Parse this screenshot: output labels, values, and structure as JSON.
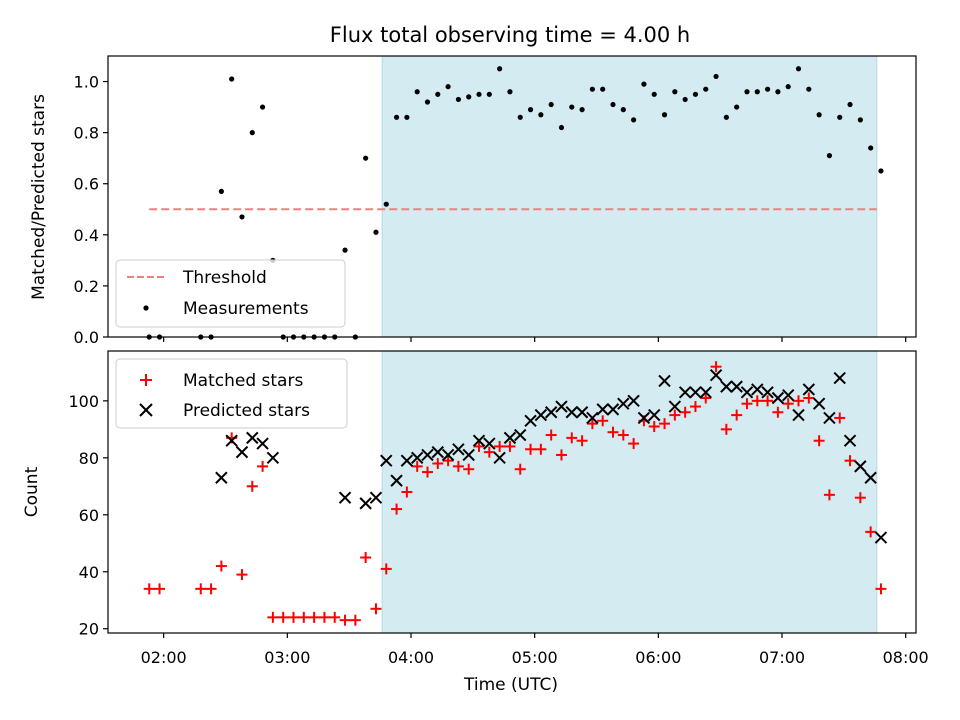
{
  "chart_data": [
    {
      "type": "scatter",
      "title": "Flux total observing time = 4.00 h",
      "xlabel": "",
      "ylabel": "Matched/Predicted stars",
      "xlim": [
        "01:33",
        "08:05"
      ],
      "ylim": [
        0,
        1.1
      ],
      "yticks": [
        "0.0",
        "0.2",
        "0.4",
        "0.6",
        "0.8",
        "1.0"
      ],
      "highlight_span": {
        "x": [
          "03:46",
          "07:46"
        ],
        "color": "#d4ebf1"
      },
      "threshold": {
        "name": "Threshold",
        "y": 0.5,
        "x": [
          "01:53",
          "07:46"
        ],
        "color": "#f08080"
      },
      "series": [
        {
          "name": "Measurements",
          "color": "#000000",
          "x": [
            "01:53",
            "01:58",
            "02:18",
            "02:23",
            "02:28",
            "02:33",
            "02:38",
            "02:43",
            "02:48",
            "02:53",
            "02:58",
            "03:03",
            "03:08",
            "03:13",
            "03:18",
            "03:23",
            "03:28",
            "03:33",
            "03:38",
            "03:43",
            "03:48",
            "03:53",
            "03:58",
            "04:03",
            "04:08",
            "04:13",
            "04:18",
            "04:23",
            "04:28",
            "04:33",
            "04:38",
            "04:43",
            "04:48",
            "04:53",
            "04:58",
            "05:03",
            "05:08",
            "05:13",
            "05:18",
            "05:23",
            "05:28",
            "05:33",
            "05:38",
            "05:43",
            "05:48",
            "05:53",
            "05:58",
            "06:03",
            "06:08",
            "06:13",
            "06:18",
            "06:23",
            "06:28",
            "06:33",
            "06:38",
            "06:43",
            "06:48",
            "06:53",
            "06:58",
            "07:03",
            "07:08",
            "07:13",
            "07:18",
            "07:23",
            "07:28",
            "07:33",
            "07:38",
            "07:43",
            "07:48"
          ],
          "y": [
            0,
            0,
            0,
            0,
            0.57,
            1.01,
            0.47,
            0.8,
            0.9,
            0.3,
            0,
            0,
            0,
            0,
            0,
            0,
            0.34,
            0,
            0.7,
            0.41,
            0.52,
            0.86,
            0.86,
            0.96,
            0.92,
            0.95,
            0.98,
            0.93,
            0.94,
            0.95,
            0.95,
            1.05,
            0.96,
            0.86,
            0.89,
            0.87,
            0.91,
            0.82,
            0.9,
            0.89,
            0.97,
            0.97,
            0.91,
            0.89,
            0.85,
            0.99,
            0.95,
            0.87,
            0.96,
            0.93,
            0.95,
            0.97,
            1.02,
            0.86,
            0.9,
            0.96,
            0.96,
            0.97,
            0.96,
            0.98,
            1.05,
            0.97,
            0.87,
            0.71,
            0.86,
            0.91,
            0.85,
            0.74,
            0.65
          ]
        }
      ],
      "legend": {
        "position": "lower left",
        "entries": [
          "Threshold",
          "Measurements"
        ]
      }
    },
    {
      "type": "scatter",
      "title": "",
      "xlabel": "Time (UTC)",
      "ylabel": "Count",
      "xlim": [
        "01:33",
        "08:05"
      ],
      "xticks": [
        "02:00",
        "03:00",
        "04:00",
        "05:00",
        "06:00",
        "07:00",
        "08:00"
      ],
      "ylim": [
        18.5,
        117.5
      ],
      "yticks": [
        "20",
        "40",
        "60",
        "80",
        "100"
      ],
      "highlight_span": {
        "x": [
          "03:46",
          "07:46"
        ],
        "color": "#d4ebf1"
      },
      "x": [
        "01:53",
        "01:58",
        "02:18",
        "02:23",
        "02:28",
        "02:33",
        "02:38",
        "02:43",
        "02:48",
        "02:53",
        "02:58",
        "03:03",
        "03:08",
        "03:13",
        "03:18",
        "03:23",
        "03:28",
        "03:33",
        "03:38",
        "03:43",
        "03:48",
        "03:53",
        "03:58",
        "04:03",
        "04:08",
        "04:13",
        "04:18",
        "04:23",
        "04:28",
        "04:33",
        "04:38",
        "04:43",
        "04:48",
        "04:53",
        "04:58",
        "05:03",
        "05:08",
        "05:13",
        "05:18",
        "05:23",
        "05:28",
        "05:33",
        "05:38",
        "05:43",
        "05:48",
        "05:53",
        "05:58",
        "06:03",
        "06:08",
        "06:13",
        "06:18",
        "06:23",
        "06:28",
        "06:33",
        "06:38",
        "06:43",
        "06:48",
        "06:53",
        "06:58",
        "07:03",
        "07:08",
        "07:13",
        "07:18",
        "07:23",
        "07:28",
        "07:33",
        "07:38",
        "07:43",
        "07:48"
      ],
      "series": [
        {
          "name": "Matched stars",
          "marker": "+",
          "color": "#ff0000",
          "values": [
            34,
            34,
            34,
            34,
            42,
            87,
            39,
            70,
            77,
            24,
            24,
            24,
            24,
            24,
            24,
            24,
            23,
            23,
            45,
            27,
            41,
            62,
            68,
            77,
            75,
            78,
            79,
            77,
            76,
            84,
            82,
            84,
            84,
            76,
            83,
            83,
            88,
            81,
            87,
            86,
            92,
            93,
            89,
            88,
            85,
            93,
            91,
            92,
            95,
            96,
            98,
            101,
            112,
            90,
            95,
            99,
            100,
            100,
            96,
            99,
            100,
            101,
            86,
            67,
            94,
            79,
            66,
            54,
            34
          ]
        },
        {
          "name": "Predicted stars",
          "marker": "x",
          "color": "#000000",
          "values": [
            null,
            null,
            null,
            null,
            73,
            86,
            82,
            87,
            85,
            80,
            null,
            null,
            null,
            null,
            null,
            null,
            66,
            null,
            64,
            66,
            79,
            72,
            79,
            80,
            81,
            82,
            81,
            83,
            81,
            86,
            85,
            80,
            87,
            88,
            93,
            95,
            96,
            98,
            96,
            96,
            94,
            97,
            97,
            99,
            100,
            94,
            95,
            107,
            98,
            103,
            103,
            103,
            109,
            105,
            105,
            103,
            104,
            103,
            101,
            102,
            95,
            104,
            99,
            94,
            108,
            86,
            77,
            73,
            52
          ]
        }
      ],
      "legend": {
        "position": "upper left",
        "entries": [
          "Matched stars",
          "Predicted stars"
        ]
      }
    }
  ]
}
